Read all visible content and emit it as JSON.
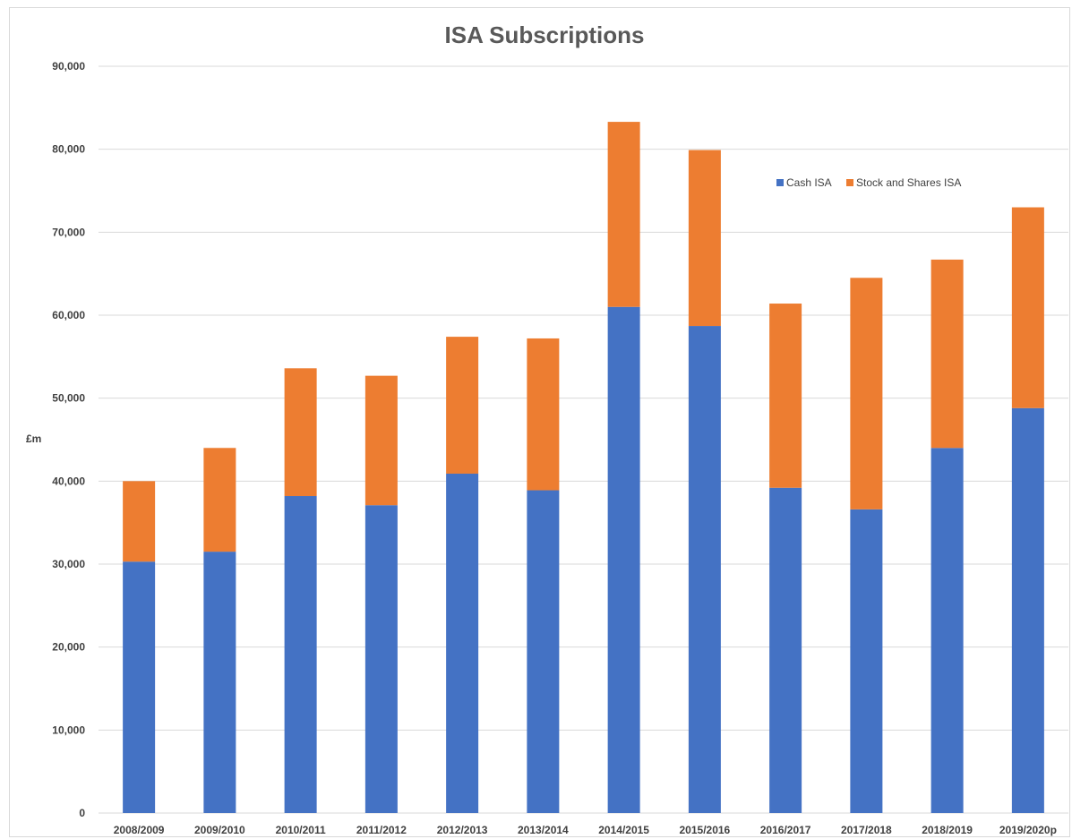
{
  "chart_data": {
    "type": "bar",
    "stacked": true,
    "title": "ISA Subscriptions",
    "xlabel": "",
    "ylabel": "£m",
    "ylim": [
      0,
      90000
    ],
    "yticks": [
      "0",
      "10,000",
      "20,000",
      "30,000",
      "40,000",
      "50,000",
      "60,000",
      "70,000",
      "80,000",
      "90,000"
    ],
    "ytick_values": [
      0,
      10000,
      20000,
      30000,
      40000,
      50000,
      60000,
      70000,
      80000,
      90000
    ],
    "grid": true,
    "legend_position": "top-right",
    "categories": [
      "2008/2009",
      "2009/2010",
      "2010/2011",
      "2011/2012",
      "2012/2013",
      "2013/2014",
      "2014/2015",
      "2015/2016",
      "2016/2017",
      "2017/2018",
      "2018/2019",
      "2019/2020p"
    ],
    "series": [
      {
        "name": "Cash ISA",
        "color": "#4472c4",
        "values": [
          30300,
          31500,
          38200,
          37100,
          40900,
          38900,
          61000,
          58700,
          39200,
          36600,
          44000,
          48800
        ]
      },
      {
        "name": "Stock and Shares ISA",
        "color": "#ed7d31",
        "values": [
          9700,
          12500,
          15400,
          15600,
          16500,
          18300,
          22300,
          21200,
          22200,
          27900,
          22700,
          24200
        ]
      }
    ]
  }
}
